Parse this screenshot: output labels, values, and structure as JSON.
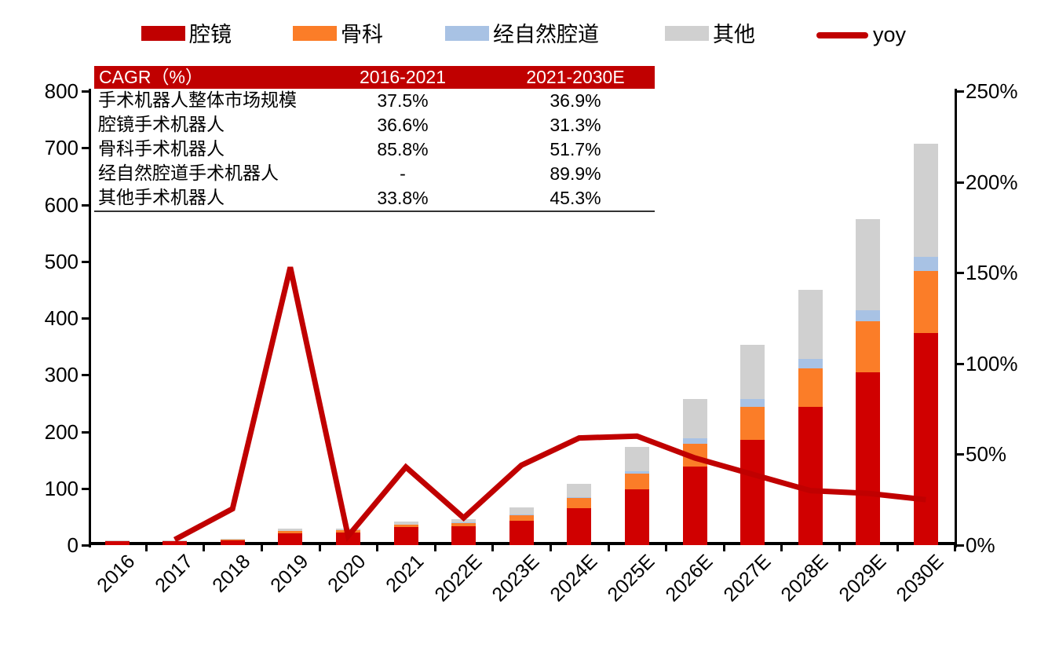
{
  "legend": {
    "items": [
      {
        "label": "腔镜",
        "color": "#C00000",
        "kind": "box"
      },
      {
        "label": "骨科",
        "color": "#FB7D28",
        "kind": "box"
      },
      {
        "label": "经自然腔道",
        "color": "#A8C2E4",
        "kind": "box"
      },
      {
        "label": "其他",
        "color": "#D0D0D0",
        "kind": "box"
      },
      {
        "label": "yoy",
        "color": "#C00000",
        "kind": "line"
      }
    ]
  },
  "cagr_table": {
    "header_bg": "#C00000",
    "header": [
      "CAGR（%）",
      "2016-2021",
      "2021-2030E"
    ],
    "rows": [
      {
        "name": "手术机器人整体市场规模",
        "v1": "37.5%",
        "v2": "36.9%"
      },
      {
        "name": "腔镜手术机器人",
        "v1": "36.6%",
        "v2": "31.3%"
      },
      {
        "name": "骨科手术机器人",
        "v1": "85.8%",
        "v2": "51.7%"
      },
      {
        "name": "经自然腔道手术机器人",
        "v1": "-",
        "v2": "89.9%"
      },
      {
        "name": "其他手术机器人",
        "v1": "33.8%",
        "v2": "45.3%"
      }
    ]
  },
  "chart_data": {
    "type": "bar",
    "subtype": "stacked-bar-with-line",
    "categories": [
      "2016",
      "2017",
      "2018",
      "2019",
      "2020",
      "2021",
      "2022E",
      "2023E",
      "2024E",
      "2025E",
      "2026E",
      "2027E",
      "2028E",
      "2029E",
      "2030E"
    ],
    "series": [
      {
        "name": "腔镜",
        "color": "#D00000",
        "values": [
          8.0,
          8.2,
          9.6,
          21,
          21.5,
          32,
          33.5,
          42.5,
          65.5,
          98,
          138,
          186,
          243,
          304,
          374
        ]
      },
      {
        "name": "骨科",
        "color": "#FB7D28",
        "values": [
          0.2,
          0.3,
          0.4,
          4.0,
          4.3,
          4.0,
          6.0,
          11.5,
          17.5,
          28,
          40.5,
          57,
          68,
          90,
          109
        ]
      },
      {
        "name": "经自然腔道",
        "color": "#A8C2E4",
        "values": [
          0,
          0,
          0,
          0,
          0,
          0.1,
          0.3,
          0.6,
          1.0,
          4.5,
          10,
          14,
          17.5,
          19.5,
          24.5
        ]
      },
      {
        "name": "其他",
        "color": "#D0D0D0",
        "values": [
          0.3,
          0.3,
          0.8,
          3.5,
          2.8,
          5.8,
          6.0,
          12.2,
          24.4,
          42.5,
          68.5,
          95.5,
          122,
          161.5,
          200
        ]
      }
    ],
    "line_series": {
      "name": "yoy",
      "color": "#C00000",
      "axis": "right",
      "values_pct": [
        null,
        3,
        20,
        153,
        5,
        43,
        15,
        44,
        59,
        60,
        48,
        39,
        30,
        28.5,
        25
      ]
    },
    "left_axis": {
      "ticks": [
        0,
        100,
        200,
        300,
        400,
        500,
        600,
        700,
        800
      ],
      "min": 0,
      "max": 800
    },
    "right_axis": {
      "ticks": [
        "0%",
        "50%",
        "100%",
        "150%",
        "200%",
        "250%"
      ],
      "min": 0,
      "max": 250
    },
    "grid": false,
    "legend_position": "top"
  }
}
